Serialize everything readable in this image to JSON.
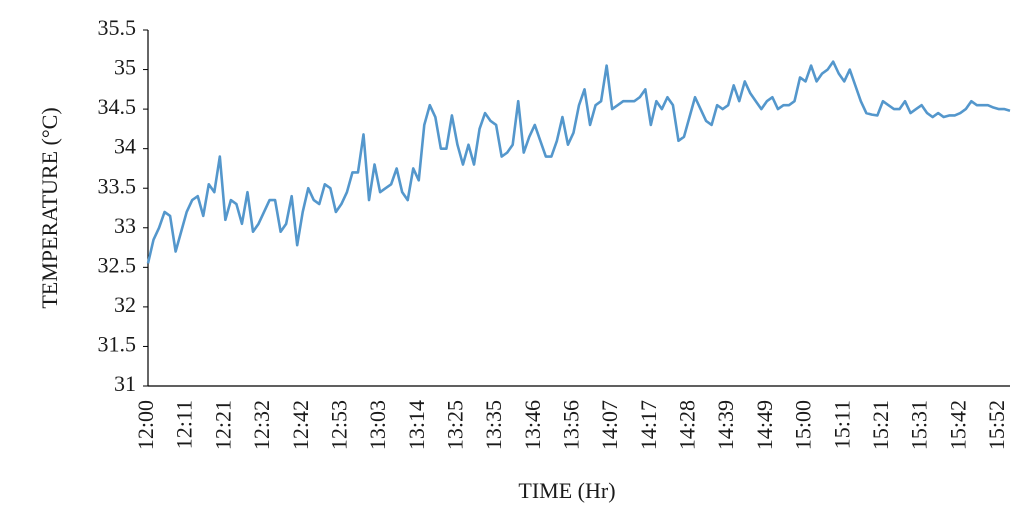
{
  "chart_data": {
    "type": "line",
    "xlabel": "TIME (Hr)",
    "ylabel": "TEMPERATURE (°C)",
    "categories": [
      "12:00",
      null,
      null,
      null,
      null,
      null,
      null,
      "12:11",
      null,
      null,
      null,
      null,
      null,
      null,
      "12:21",
      null,
      null,
      null,
      null,
      null,
      null,
      "12:32",
      null,
      null,
      null,
      null,
      null,
      null,
      "12:42",
      null,
      null,
      null,
      null,
      null,
      null,
      "12:53",
      null,
      null,
      null,
      null,
      null,
      null,
      "13:03",
      null,
      null,
      null,
      null,
      null,
      null,
      "13:14",
      null,
      null,
      null,
      null,
      null,
      null,
      "13:25",
      null,
      null,
      null,
      null,
      null,
      null,
      "13:35",
      null,
      null,
      null,
      null,
      null,
      null,
      "13:46",
      null,
      null,
      null,
      null,
      null,
      null,
      "13:56",
      null,
      null,
      null,
      null,
      null,
      null,
      "14:07",
      null,
      null,
      null,
      null,
      null,
      null,
      "14:17",
      null,
      null,
      null,
      null,
      null,
      null,
      "14:28",
      null,
      null,
      null,
      null,
      null,
      null,
      "14:39",
      null,
      null,
      null,
      null,
      null,
      null,
      "14:49",
      null,
      null,
      null,
      null,
      null,
      null,
      "15:00",
      null,
      null,
      null,
      null,
      null,
      null,
      "15:11",
      null,
      null,
      null,
      null,
      null,
      null,
      "15:21",
      null,
      null,
      null,
      null,
      null,
      null,
      "15:31",
      null,
      null,
      null,
      null,
      null,
      null,
      "15:42",
      null,
      null,
      null,
      null,
      null,
      null,
      "15:52",
      null,
      null
    ],
    "series": [
      {
        "name": "Temperature",
        "color": "#5497cc",
        "values": [
          32.55,
          32.85,
          33.0,
          33.2,
          33.15,
          32.7,
          32.95,
          33.2,
          33.35,
          33.4,
          33.15,
          33.55,
          33.45,
          33.9,
          33.1,
          33.35,
          33.3,
          33.05,
          33.45,
          32.95,
          33.05,
          33.2,
          33.35,
          33.35,
          32.95,
          33.05,
          33.4,
          32.78,
          33.2,
          33.5,
          33.35,
          33.3,
          33.55,
          33.5,
          33.2,
          33.3,
          33.45,
          33.7,
          33.7,
          34.18,
          33.35,
          33.8,
          33.45,
          33.5,
          33.55,
          33.75,
          33.45,
          33.35,
          33.75,
          33.6,
          34.3,
          34.55,
          34.4,
          34.0,
          34.0,
          34.42,
          34.05,
          33.8,
          34.05,
          33.8,
          34.25,
          34.45,
          34.35,
          34.3,
          33.9,
          33.95,
          34.05,
          34.6,
          33.95,
          34.15,
          34.3,
          34.1,
          33.9,
          33.9,
          34.1,
          34.4,
          34.05,
          34.2,
          34.55,
          34.75,
          34.3,
          34.55,
          34.6,
          35.05,
          34.5,
          34.55,
          34.6,
          34.6,
          34.6,
          34.65,
          34.75,
          34.3,
          34.6,
          34.5,
          34.65,
          34.55,
          34.1,
          34.15,
          34.4,
          34.65,
          34.5,
          34.35,
          34.3,
          34.55,
          34.5,
          34.55,
          34.8,
          34.6,
          34.85,
          34.7,
          34.6,
          34.5,
          34.6,
          34.65,
          34.5,
          34.55,
          34.55,
          34.6,
          34.9,
          34.85,
          35.05,
          34.85,
          34.95,
          35.0,
          35.1,
          34.95,
          34.85,
          35.0,
          34.8,
          34.6,
          34.45,
          34.43,
          34.42,
          34.6,
          34.55,
          34.5,
          34.5,
          34.6,
          34.45,
          34.5,
          34.55,
          34.45,
          34.4,
          34.45,
          34.4,
          34.42,
          34.42,
          34.45,
          34.5,
          34.6,
          34.55,
          34.55,
          34.55,
          34.52,
          34.5,
          34.5,
          34.48
        ]
      }
    ],
    "ylim": [
      31,
      35.5
    ],
    "yticks": [
      31,
      31.5,
      32,
      32.5,
      33,
      33.5,
      34,
      34.5,
      35,
      35.5
    ],
    "grid": false
  }
}
